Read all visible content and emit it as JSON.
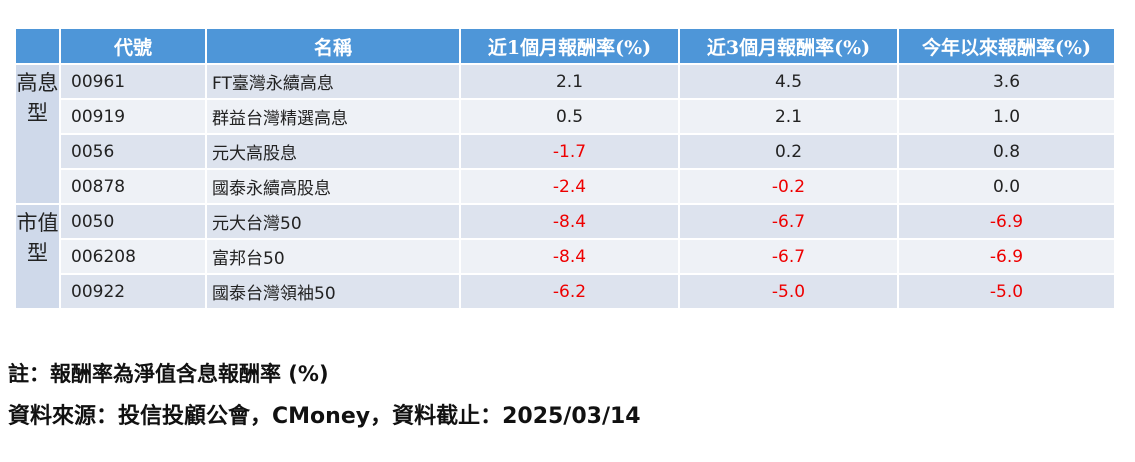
{
  "table": {
    "headers": [
      "",
      "代號",
      "名稱",
      "近1個月報酬率(%)",
      "近3個月報酬率(%)",
      "今年以來報酬率(%)"
    ],
    "groups": [
      {
        "label": "高息型",
        "rows": [
          {
            "code": "00961",
            "name": "FT臺灣永續高息",
            "m1": "2.1",
            "m3": "4.5",
            "ytd": "3.6"
          },
          {
            "code": "00919",
            "name": "群益台灣精選高息",
            "m1": "0.5",
            "m3": "2.1",
            "ytd": "1.0"
          },
          {
            "code": "0056",
            "name": "元大高股息",
            "m1": "-1.7",
            "m3": "0.2",
            "ytd": "0.8"
          },
          {
            "code": "00878",
            "name": "國泰永續高股息",
            "m1": "-2.4",
            "m3": "-0.2",
            "ytd": "0.0"
          }
        ]
      },
      {
        "label": "市值型",
        "rows": [
          {
            "code": "0050",
            "name": "元大台灣50",
            "m1": "-8.4",
            "m3": "-6.7",
            "ytd": "-6.9"
          },
          {
            "code": "006208",
            "name": "富邦台50",
            "m1": "-8.4",
            "m3": "-6.7",
            "ytd": "-6.9"
          },
          {
            "code": "00922",
            "name": "國泰台灣領袖50",
            "m1": "-6.2",
            "m3": "-5.0",
            "ytd": "-5.0"
          }
        ]
      }
    ]
  },
  "notes": {
    "note": "註：報酬率為淨值含息報酬率 (%)",
    "source": "資料來源：投信投顧公會，CMoney，資料截止：2025/03/14"
  },
  "colors": {
    "header_bg": "#4e96d8",
    "row_odd": "#dde3ee",
    "row_even": "#eef1f6",
    "negative": "#ee0000"
  }
}
